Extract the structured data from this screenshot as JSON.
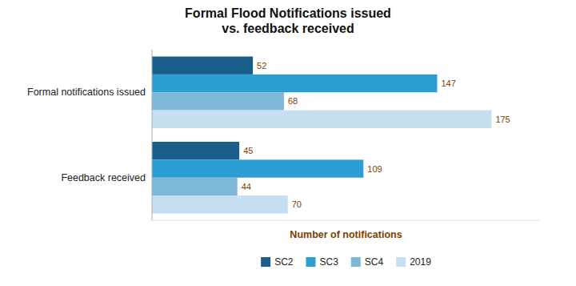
{
  "chart_data": {
    "type": "bar",
    "orientation": "horizontal",
    "title": "Formal Flood Notifications issued\nvs. feedback received",
    "xlabel": "Number of notifications",
    "categories": [
      "Formal notifications issued",
      "Feedback received"
    ],
    "series": [
      {
        "name": "SC2",
        "color": "#1b5e8b",
        "values": [
          52,
          45
        ]
      },
      {
        "name": "SC3",
        "color": "#2b9fd4",
        "values": [
          147,
          109
        ]
      },
      {
        "name": "SC4",
        "color": "#7db8d8",
        "values": [
          68,
          44
        ]
      },
      {
        "name": "2019",
        "color": "#c5dff0",
        "values": [
          175,
          70
        ]
      }
    ],
    "xlim": [
      0,
      200
    ],
    "grid": false,
    "legend": "bottom",
    "data_labels": true,
    "tick_labels": "y"
  }
}
